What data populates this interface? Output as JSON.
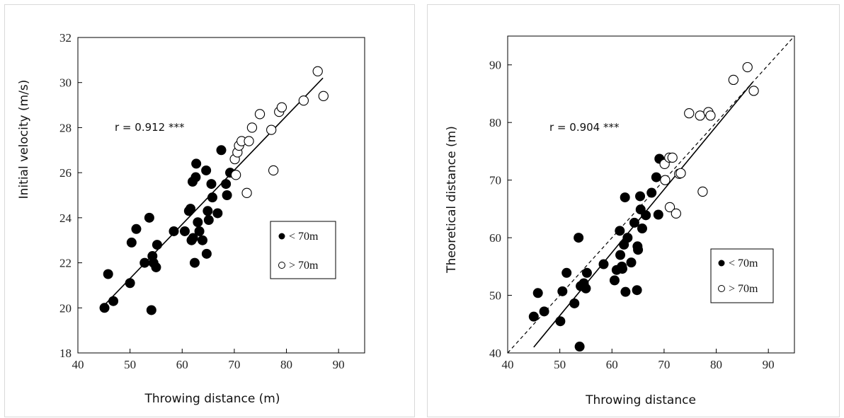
{
  "chart_data": [
    {
      "type": "scatter",
      "xlabel": "Throwing distance (m)",
      "ylabel": "Initial velocity (m/s)",
      "xlim": [
        40,
        95
      ],
      "ylim": [
        18,
        32
      ],
      "xticks": [
        "40",
        "50",
        "60",
        "70",
        "80",
        "90"
      ],
      "yticks": [
        "18",
        "20",
        "22",
        "24",
        "26",
        "28",
        "30",
        "32"
      ],
      "xtick_values": [
        40,
        50,
        60,
        70,
        80,
        90
      ],
      "ytick_values": [
        18,
        20,
        22,
        24,
        26,
        28,
        30,
        32
      ],
      "annotation": "r = 0.912 ***",
      "grid": false,
      "legend_position": "right",
      "regression_line": [
        [
          45,
          20.1
        ],
        [
          87,
          30.2
        ]
      ],
      "identity_line": null,
      "series": [
        {
          "name": "< 70m",
          "marker": "filled-circle",
          "color": "#000000",
          "points": [
            [
              45.1,
              20.0
            ],
            [
              45.8,
              21.5
            ],
            [
              46.8,
              20.3
            ],
            [
              50.0,
              21.1
            ],
            [
              50.3,
              22.9
            ],
            [
              51.2,
              23.5
            ],
            [
              52.8,
              22.0
            ],
            [
              53.7,
              24.0
            ],
            [
              54.1,
              19.9
            ],
            [
              54.3,
              22.3
            ],
            [
              54.5,
              22.0
            ],
            [
              55.0,
              21.8
            ],
            [
              55.2,
              22.8
            ],
            [
              58.4,
              23.4
            ],
            [
              60.5,
              23.4
            ],
            [
              61.3,
              24.3
            ],
            [
              61.6,
              24.4
            ],
            [
              61.8,
              23.0
            ],
            [
              62.0,
              25.6
            ],
            [
              62.1,
              23.1
            ],
            [
              62.4,
              22.0
            ],
            [
              62.6,
              25.8
            ],
            [
              62.7,
              26.4
            ],
            [
              63.0,
              23.8
            ],
            [
              63.3,
              23.4
            ],
            [
              63.9,
              23.0
            ],
            [
              64.6,
              26.1
            ],
            [
              64.7,
              22.4
            ],
            [
              64.9,
              24.3
            ],
            [
              65.1,
              23.9
            ],
            [
              65.6,
              25.5
            ],
            [
              65.8,
              24.9
            ],
            [
              66.8,
              24.2
            ],
            [
              67.5,
              27.0
            ],
            [
              68.4,
              25.5
            ],
            [
              68.6,
              25.0
            ],
            [
              69.2,
              26.0
            ]
          ]
        },
        {
          "name": "> 70m",
          "marker": "open-circle",
          "color": "#000000",
          "points": [
            [
              70.1,
              26.6
            ],
            [
              70.3,
              25.9
            ],
            [
              70.6,
              26.9
            ],
            [
              70.9,
              27.2
            ],
            [
              71.4,
              27.4
            ],
            [
              72.4,
              25.1
            ],
            [
              72.8,
              27.4
            ],
            [
              73.4,
              28.0
            ],
            [
              74.9,
              28.6
            ],
            [
              77.1,
              27.9
            ],
            [
              77.5,
              26.1
            ],
            [
              78.6,
              28.7
            ],
            [
              79.1,
              28.9
            ],
            [
              83.3,
              29.2
            ],
            [
              86.0,
              30.5
            ],
            [
              87.1,
              29.4
            ]
          ]
        }
      ]
    },
    {
      "type": "scatter",
      "xlabel": "Throwing distance",
      "ylabel": "Theoretical distance (m)",
      "xlim": [
        40,
        95
      ],
      "ylim": [
        40,
        95
      ],
      "xticks": [
        "40",
        "50",
        "60",
        "70",
        "80",
        "90"
      ],
      "yticks": [
        "40",
        "50",
        "60",
        "70",
        "80",
        "90"
      ],
      "xtick_values": [
        40,
        50,
        60,
        70,
        80,
        90
      ],
      "ytick_values": [
        40,
        50,
        60,
        70,
        80,
        90
      ],
      "annotation": "r = 0.904 ***",
      "grid": false,
      "legend_position": "right",
      "regression_line": [
        [
          45,
          41
        ],
        [
          87,
          87
        ]
      ],
      "identity_line": [
        [
          40,
          40
        ],
        [
          95,
          95
        ]
      ],
      "series": [
        {
          "name": "< 70m",
          "marker": "filled-circle",
          "color": "#000000",
          "points": [
            [
              45.0,
              46.3
            ],
            [
              45.8,
              50.4
            ],
            [
              47.0,
              47.2
            ],
            [
              50.1,
              45.5
            ],
            [
              50.5,
              50.7
            ],
            [
              51.3,
              53.9
            ],
            [
              52.8,
              48.6
            ],
            [
              53.6,
              60.0
            ],
            [
              53.8,
              41.1
            ],
            [
              54.0,
              51.6
            ],
            [
              54.6,
              52.1
            ],
            [
              55.0,
              51.2
            ],
            [
              55.2,
              53.9
            ],
            [
              58.4,
              55.4
            ],
            [
              60.5,
              52.6
            ],
            [
              60.9,
              54.4
            ],
            [
              61.5,
              61.2
            ],
            [
              61.6,
              57.0
            ],
            [
              61.9,
              55.0
            ],
            [
              62.0,
              54.6
            ],
            [
              62.3,
              58.8
            ],
            [
              62.5,
              67.0
            ],
            [
              62.6,
              50.6
            ],
            [
              63.0,
              60.0
            ],
            [
              63.7,
              55.7
            ],
            [
              64.3,
              62.6
            ],
            [
              64.8,
              50.9
            ],
            [
              64.9,
              58.5
            ],
            [
              65.0,
              57.9
            ],
            [
              65.4,
              67.2
            ],
            [
              65.5,
              64.9
            ],
            [
              65.8,
              61.6
            ],
            [
              66.5,
              63.9
            ],
            [
              67.6,
              67.8
            ],
            [
              68.5,
              70.5
            ],
            [
              68.9,
              64.0
            ],
            [
              69.1,
              73.7
            ]
          ]
        },
        {
          "name": "> 70m",
          "marker": "open-circle",
          "color": "#000000",
          "points": [
            [
              70.1,
              72.8
            ],
            [
              70.2,
              70.0
            ],
            [
              71.0,
              73.9
            ],
            [
              71.1,
              65.3
            ],
            [
              71.6,
              73.9
            ],
            [
              72.3,
              64.2
            ],
            [
              72.9,
              71.1
            ],
            [
              73.2,
              71.2
            ],
            [
              74.8,
              81.6
            ],
            [
              76.9,
              81.2
            ],
            [
              77.4,
              68.0
            ],
            [
              78.5,
              81.8
            ],
            [
              78.9,
              81.2
            ],
            [
              83.3,
              87.4
            ],
            [
              86.0,
              89.6
            ],
            [
              87.2,
              85.5
            ]
          ]
        }
      ]
    }
  ]
}
